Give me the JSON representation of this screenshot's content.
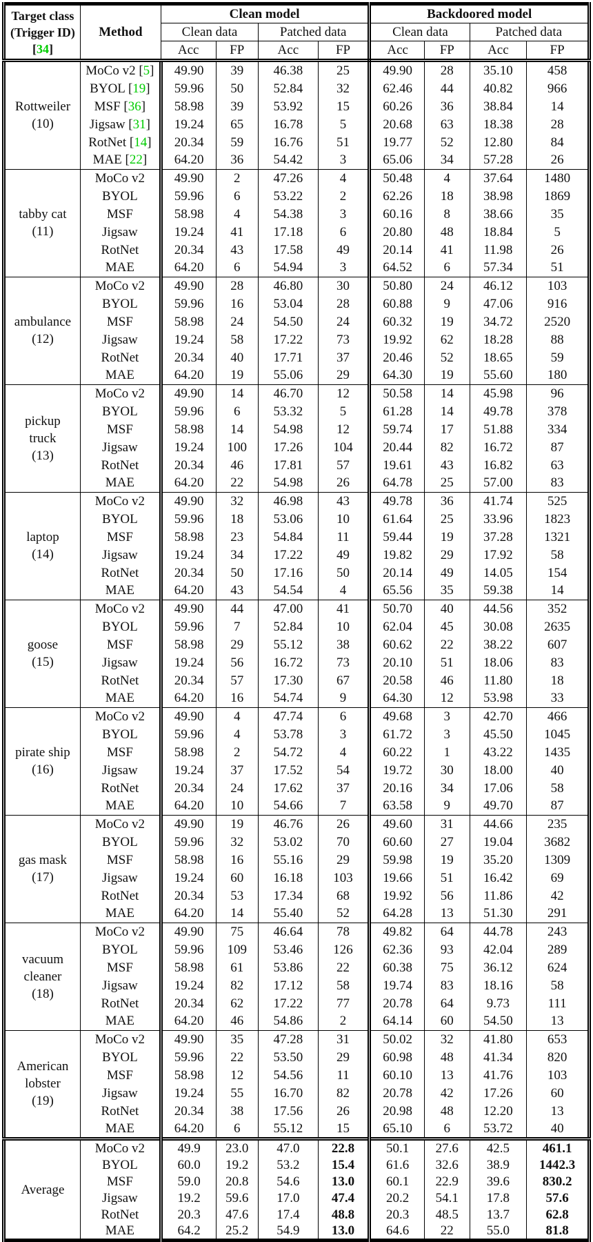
{
  "colors": {
    "citation": "#00cc00",
    "border": "#000000",
    "text": "#111111",
    "background": "#ffffff"
  },
  "header": {
    "target_class_line1": "Target class",
    "target_class_line2": "(Trigger ID)",
    "target_class_cite": "34",
    "method": "Method",
    "clean_model": "Clean model",
    "backdoored_model": "Backdoored model",
    "clean_data": "Clean data",
    "patched_data": "Patched data",
    "acc": "Acc",
    "fp": "FP"
  },
  "chart_data": {
    "type": "table",
    "columns": [
      "Target class (Trigger ID)",
      "Method",
      "Clean model / Clean data / Acc",
      "Clean model / Clean data / FP",
      "Clean model / Patched data / Acc",
      "Clean model / Patched data / FP",
      "Backdoored model / Clean data / Acc",
      "Backdoored model / Clean data / FP",
      "Backdoored model / Patched data / Acc",
      "Backdoored model / Patched data / FP"
    ]
  },
  "groups": [
    {
      "target_lines": [
        "Rottweiler",
        "(10)"
      ],
      "rows": [
        {
          "method": "MoCo v2",
          "cite": "5",
          "values": [
            "49.90",
            "39",
            "46.38",
            "25",
            "49.90",
            "28",
            "35.10",
            "458"
          ]
        },
        {
          "method": "BYOL",
          "cite": "19",
          "values": [
            "59.96",
            "50",
            "52.84",
            "32",
            "62.46",
            "44",
            "40.82",
            "966"
          ]
        },
        {
          "method": "MSF",
          "cite": "36",
          "values": [
            "58.98",
            "39",
            "53.92",
            "15",
            "60.26",
            "36",
            "38.84",
            "14"
          ]
        },
        {
          "method": "Jigsaw",
          "cite": "31",
          "values": [
            "19.24",
            "65",
            "16.78",
            "5",
            "20.68",
            "63",
            "18.38",
            "28"
          ]
        },
        {
          "method": "RotNet",
          "cite": "14",
          "values": [
            "20.34",
            "59",
            "16.76",
            "51",
            "19.77",
            "52",
            "12.80",
            "84"
          ]
        },
        {
          "method": "MAE",
          "cite": "22",
          "values": [
            "64.20",
            "36",
            "54.42",
            "3",
            "65.06",
            "34",
            "57.28",
            "26"
          ]
        }
      ]
    },
    {
      "target_lines": [
        "tabby cat",
        "(11)"
      ],
      "rows": [
        {
          "method": "MoCo v2",
          "values": [
            "49.90",
            "2",
            "47.26",
            "4",
            "50.48",
            "4",
            "37.64",
            "1480"
          ]
        },
        {
          "method": "BYOL",
          "values": [
            "59.96",
            "6",
            "53.22",
            "2",
            "62.26",
            "18",
            "38.98",
            "1869"
          ]
        },
        {
          "method": "MSF",
          "values": [
            "58.98",
            "4",
            "54.38",
            "3",
            "60.16",
            "8",
            "38.66",
            "35"
          ]
        },
        {
          "method": "Jigsaw",
          "values": [
            "19.24",
            "41",
            "17.18",
            "6",
            "20.80",
            "48",
            "18.84",
            "5"
          ]
        },
        {
          "method": "RotNet",
          "values": [
            "20.34",
            "43",
            "17.58",
            "49",
            "20.14",
            "41",
            "11.98",
            "26"
          ]
        },
        {
          "method": "MAE",
          "values": [
            "64.20",
            "6",
            "54.94",
            "3",
            "64.52",
            "6",
            "57.34",
            "51"
          ]
        }
      ]
    },
    {
      "target_lines": [
        "ambulance",
        "(12)"
      ],
      "rows": [
        {
          "method": "MoCo v2",
          "values": [
            "49.90",
            "28",
            "46.80",
            "30",
            "50.80",
            "24",
            "46.12",
            "103"
          ]
        },
        {
          "method": "BYOL",
          "values": [
            "59.96",
            "16",
            "53.04",
            "28",
            "60.88",
            "9",
            "47.06",
            "916"
          ]
        },
        {
          "method": "MSF",
          "values": [
            "58.98",
            "24",
            "54.50",
            "24",
            "60.32",
            "19",
            "34.72",
            "2520"
          ]
        },
        {
          "method": "Jigsaw",
          "values": [
            "19.24",
            "58",
            "17.22",
            "73",
            "19.92",
            "62",
            "18.28",
            "88"
          ]
        },
        {
          "method": "RotNet",
          "values": [
            "20.34",
            "40",
            "17.71",
            "37",
            "20.46",
            "52",
            "18.65",
            "59"
          ]
        },
        {
          "method": "MAE",
          "values": [
            "64.20",
            "19",
            "55.06",
            "29",
            "64.30",
            "19",
            "55.60",
            "180"
          ]
        }
      ]
    },
    {
      "target_lines": [
        "pickup",
        "truck",
        "(13)"
      ],
      "rows": [
        {
          "method": "MoCo v2",
          "values": [
            "49.90",
            "14",
            "46.70",
            "12",
            "50.58",
            "14",
            "45.98",
            "96"
          ]
        },
        {
          "method": "BYOL",
          "values": [
            "59.96",
            "6",
            "53.32",
            "5",
            "61.28",
            "14",
            "49.78",
            "378"
          ]
        },
        {
          "method": "MSF",
          "values": [
            "58.98",
            "14",
            "54.98",
            "12",
            "59.74",
            "17",
            "51.88",
            "334"
          ]
        },
        {
          "method": "Jigsaw",
          "values": [
            "19.24",
            "100",
            "17.26",
            "104",
            "20.44",
            "82",
            "16.72",
            "87"
          ]
        },
        {
          "method": "RotNet",
          "values": [
            "20.34",
            "46",
            "17.81",
            "57",
            "19.61",
            "43",
            "16.82",
            "63"
          ]
        },
        {
          "method": "MAE",
          "values": [
            "64.20",
            "22",
            "54.98",
            "26",
            "64.78",
            "25",
            "57.00",
            "83"
          ]
        }
      ]
    },
    {
      "target_lines": [
        "laptop",
        "(14)"
      ],
      "rows": [
        {
          "method": "MoCo v2",
          "values": [
            "49.90",
            "32",
            "46.98",
            "43",
            "49.78",
            "36",
            "41.74",
            "525"
          ]
        },
        {
          "method": "BYOL",
          "values": [
            "59.96",
            "18",
            "53.06",
            "10",
            "61.64",
            "25",
            "33.96",
            "1823"
          ]
        },
        {
          "method": "MSF",
          "values": [
            "58.98",
            "23",
            "54.84",
            "11",
            "59.44",
            "19",
            "37.28",
            "1321"
          ]
        },
        {
          "method": "Jigsaw",
          "values": [
            "19.24",
            "34",
            "17.22",
            "49",
            "19.82",
            "29",
            "17.92",
            "58"
          ]
        },
        {
          "method": "RotNet",
          "values": [
            "20.34",
            "50",
            "17.16",
            "50",
            "20.14",
            "49",
            "14.05",
            "154"
          ]
        },
        {
          "method": "MAE",
          "values": [
            "64.20",
            "43",
            "54.54",
            "4",
            "65.56",
            "35",
            "59.38",
            "14"
          ]
        }
      ]
    },
    {
      "target_lines": [
        "goose",
        "(15)"
      ],
      "rows": [
        {
          "method": "MoCo v2",
          "values": [
            "49.90",
            "44",
            "47.00",
            "41",
            "50.70",
            "40",
            "44.56",
            "352"
          ]
        },
        {
          "method": "BYOL",
          "values": [
            "59.96",
            "7",
            "52.84",
            "10",
            "62.04",
            "45",
            "30.08",
            "2635"
          ]
        },
        {
          "method": "MSF",
          "values": [
            "58.98",
            "29",
            "55.12",
            "38",
            "60.62",
            "22",
            "38.22",
            "607"
          ]
        },
        {
          "method": "Jigsaw",
          "values": [
            "19.24",
            "56",
            "16.72",
            "73",
            "20.10",
            "51",
            "18.06",
            "83"
          ]
        },
        {
          "method": "RotNet",
          "values": [
            "20.34",
            "57",
            "17.30",
            "67",
            "20.58",
            "46",
            "11.80",
            "18"
          ]
        },
        {
          "method": "MAE",
          "values": [
            "64.20",
            "16",
            "54.74",
            "9",
            "64.30",
            "12",
            "53.98",
            "33"
          ]
        }
      ]
    },
    {
      "target_lines": [
        "pirate ship",
        "(16)"
      ],
      "rows": [
        {
          "method": "MoCo v2",
          "values": [
            "49.90",
            "4",
            "47.74",
            "6",
            "49.68",
            "3",
            "42.70",
            "466"
          ]
        },
        {
          "method": "BYOL",
          "values": [
            "59.96",
            "4",
            "53.78",
            "3",
            "61.72",
            "3",
            "45.50",
            "1045"
          ]
        },
        {
          "method": "MSF",
          "values": [
            "58.98",
            "2",
            "54.72",
            "4",
            "60.22",
            "1",
            "43.22",
            "1435"
          ]
        },
        {
          "method": "Jigsaw",
          "values": [
            "19.24",
            "37",
            "17.52",
            "54",
            "19.72",
            "30",
            "18.00",
            "40"
          ]
        },
        {
          "method": "RotNet",
          "values": [
            "20.34",
            "24",
            "17.62",
            "37",
            "20.16",
            "34",
            "17.06",
            "58"
          ]
        },
        {
          "method": "MAE",
          "values": [
            "64.20",
            "10",
            "54.66",
            "7",
            "63.58",
            "9",
            "49.70",
            "87"
          ]
        }
      ]
    },
    {
      "target_lines": [
        "gas mask",
        "(17)"
      ],
      "rows": [
        {
          "method": "MoCo v2",
          "values": [
            "49.90",
            "19",
            "46.76",
            "26",
            "49.60",
            "31",
            "44.66",
            "235"
          ]
        },
        {
          "method": "BYOL",
          "values": [
            "59.96",
            "32",
            "53.02",
            "70",
            "60.60",
            "27",
            "19.04",
            "3682"
          ]
        },
        {
          "method": "MSF",
          "values": [
            "58.98",
            "16",
            "55.16",
            "29",
            "59.98",
            "19",
            "35.20",
            "1309"
          ]
        },
        {
          "method": "Jigsaw",
          "values": [
            "19.24",
            "60",
            "16.18",
            "103",
            "19.66",
            "51",
            "16.42",
            "69"
          ]
        },
        {
          "method": "RotNet",
          "values": [
            "20.34",
            "53",
            "17.34",
            "68",
            "19.92",
            "56",
            "11.86",
            "42"
          ]
        },
        {
          "method": "MAE",
          "values": [
            "64.20",
            "14",
            "55.40",
            "52",
            "64.28",
            "13",
            "51.30",
            "291"
          ]
        }
      ]
    },
    {
      "target_lines": [
        "vacuum",
        "cleaner",
        "(18)"
      ],
      "rows": [
        {
          "method": "MoCo v2",
          "values": [
            "49.90",
            "75",
            "46.64",
            "78",
            "49.82",
            "64",
            "44.78",
            "243"
          ]
        },
        {
          "method": "BYOL",
          "values": [
            "59.96",
            "109",
            "53.46",
            "126",
            "62.36",
            "93",
            "42.04",
            "289"
          ]
        },
        {
          "method": "MSF",
          "values": [
            "58.98",
            "61",
            "53.86",
            "22",
            "60.38",
            "75",
            "36.12",
            "624"
          ]
        },
        {
          "method": "Jigsaw",
          "values": [
            "19.24",
            "82",
            "17.12",
            "58",
            "19.74",
            "83",
            "18.16",
            "58"
          ]
        },
        {
          "method": "RotNet",
          "values": [
            "20.34",
            "62",
            "17.22",
            "77",
            "20.78",
            "64",
            "9.73",
            "111"
          ]
        },
        {
          "method": "MAE",
          "values": [
            "64.20",
            "46",
            "54.86",
            "2",
            "64.14",
            "60",
            "54.50",
            "13"
          ]
        }
      ]
    },
    {
      "target_lines": [
        "American",
        "lobster",
        "(19)"
      ],
      "rows": [
        {
          "method": "MoCo v2",
          "values": [
            "49.90",
            "35",
            "47.28",
            "31",
            "50.02",
            "32",
            "41.80",
            "653"
          ]
        },
        {
          "method": "BYOL",
          "values": [
            "59.96",
            "22",
            "53.50",
            "29",
            "60.98",
            "48",
            "41.34",
            "820"
          ]
        },
        {
          "method": "MSF",
          "values": [
            "58.98",
            "12",
            "54.56",
            "11",
            "60.10",
            "13",
            "41.76",
            "103"
          ]
        },
        {
          "method": "Jigsaw",
          "values": [
            "19.24",
            "55",
            "16.70",
            "82",
            "20.78",
            "42",
            "17.26",
            "60"
          ]
        },
        {
          "method": "RotNet",
          "values": [
            "20.34",
            "38",
            "17.56",
            "26",
            "20.98",
            "48",
            "12.20",
            "13"
          ]
        },
        {
          "method": "MAE",
          "values": [
            "64.20",
            "6",
            "55.12",
            "15",
            "65.10",
            "6",
            "53.72",
            "40"
          ]
        }
      ]
    },
    {
      "target_lines": [
        "Average"
      ],
      "separator": "double",
      "rows": [
        {
          "method": "MoCo v2",
          "values": [
            "49.9",
            "23.0",
            "47.0",
            "22.8",
            "50.1",
            "27.6",
            "42.5",
            "461.1"
          ],
          "bold": [
            3,
            7
          ]
        },
        {
          "method": "BYOL",
          "values": [
            "60.0",
            "19.2",
            "53.2",
            "15.4",
            "61.6",
            "32.6",
            "38.9",
            "1442.3"
          ],
          "bold": [
            3,
            7
          ]
        },
        {
          "method": "MSF",
          "values": [
            "59.0",
            "20.8",
            "54.6",
            "13.0",
            "60.1",
            "22.9",
            "39.6",
            "830.2"
          ],
          "bold": [
            3,
            7
          ]
        },
        {
          "method": "Jigsaw",
          "values": [
            "19.2",
            "59.6",
            "17.0",
            "47.4",
            "20.2",
            "54.1",
            "17.8",
            "57.6"
          ],
          "bold": [
            3,
            7
          ]
        },
        {
          "method": "RotNet",
          "values": [
            "20.3",
            "47.6",
            "17.4",
            "48.8",
            "20.3",
            "48.5",
            "13.7",
            "62.8"
          ],
          "bold": [
            3,
            7
          ]
        },
        {
          "method": "MAE",
          "values": [
            "64.2",
            "25.2",
            "54.9",
            "13.0",
            "64.6",
            "22",
            "55.0",
            "81.8"
          ],
          "bold": [
            3,
            7
          ]
        }
      ]
    }
  ]
}
